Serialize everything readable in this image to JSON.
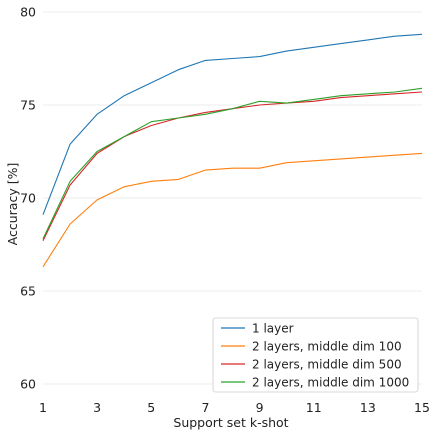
{
  "chart_data": {
    "type": "line",
    "title": "",
    "xlabel": "Support set k-shot",
    "ylabel": "Accuracy [%]",
    "xlim": [
      1,
      15
    ],
    "ylim": [
      60,
      80
    ],
    "xticks": [
      1,
      3,
      5,
      7,
      9,
      11,
      13,
      15
    ],
    "yticks": [
      60,
      65,
      70,
      75,
      80
    ],
    "grid": true,
    "legend_position": "lower-right",
    "x": [
      1,
      2,
      3,
      4,
      5,
      6,
      7,
      8,
      9,
      10,
      11,
      12,
      13,
      14,
      15
    ],
    "series": [
      {
        "name": "1 layer",
        "color": "#1f77b4",
        "values": [
          69.1,
          72.9,
          74.5,
          75.5,
          76.2,
          76.9,
          77.4,
          77.5,
          77.6,
          77.9,
          78.1,
          78.3,
          78.5,
          78.7,
          78.8
        ]
      },
      {
        "name": "2 layers, middle dim 100",
        "color": "#ff7f0e",
        "values": [
          66.3,
          68.6,
          69.9,
          70.6,
          70.9,
          71.0,
          71.5,
          71.6,
          71.6,
          71.9,
          72.0,
          72.1,
          72.2,
          72.3,
          72.4
        ]
      },
      {
        "name": "2 layers, middle dim 500",
        "color": "#d62728",
        "values": [
          67.7,
          70.7,
          72.4,
          73.3,
          73.9,
          74.3,
          74.6,
          74.8,
          75.0,
          75.1,
          75.2,
          75.4,
          75.5,
          75.6,
          75.7
        ]
      },
      {
        "name": "2 layers, middle dim 1000",
        "color": "#2ca02c",
        "values": [
          67.8,
          70.9,
          72.5,
          73.3,
          74.1,
          74.3,
          74.5,
          74.8,
          75.2,
          75.1,
          75.3,
          75.5,
          75.6,
          75.7,
          75.9
        ]
      }
    ]
  }
}
